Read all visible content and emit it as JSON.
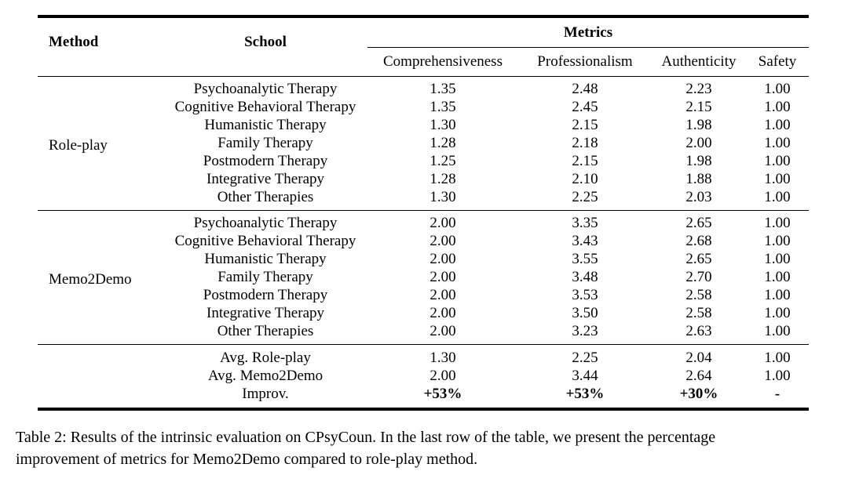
{
  "table": {
    "header": {
      "method": "Method",
      "school": "School",
      "metrics_group": "Metrics",
      "metrics": [
        "Comprehensiveness",
        "Professionalism",
        "Authenticity",
        "Safety"
      ]
    },
    "groups": [
      {
        "method": "Role-play",
        "rows": [
          {
            "school": "Psychoanalytic Therapy",
            "values": [
              "1.35",
              "2.48",
              "2.23",
              "1.00"
            ]
          },
          {
            "school": "Cognitive Behavioral Therapy",
            "values": [
              "1.35",
              "2.45",
              "2.15",
              "1.00"
            ]
          },
          {
            "school": "Humanistic Therapy",
            "values": [
              "1.30",
              "2.15",
              "1.98",
              "1.00"
            ]
          },
          {
            "school": "Family Therapy",
            "values": [
              "1.28",
              "2.18",
              "2.00",
              "1.00"
            ]
          },
          {
            "school": "Postmodern Therapy",
            "values": [
              "1.25",
              "2.15",
              "1.98",
              "1.00"
            ]
          },
          {
            "school": "Integrative Therapy",
            "values": [
              "1.28",
              "2.10",
              "1.88",
              "1.00"
            ]
          },
          {
            "school": "Other Therapies",
            "values": [
              "1.30",
              "2.25",
              "2.03",
              "1.00"
            ]
          }
        ]
      },
      {
        "method": "Memo2Demo",
        "rows": [
          {
            "school": "Psychoanalytic Therapy",
            "values": [
              "2.00",
              "3.35",
              "2.65",
              "1.00"
            ]
          },
          {
            "school": "Cognitive Behavioral Therapy",
            "values": [
              "2.00",
              "3.43",
              "2.68",
              "1.00"
            ]
          },
          {
            "school": "Humanistic Therapy",
            "values": [
              "2.00",
              "3.55",
              "2.65",
              "1.00"
            ]
          },
          {
            "school": "Family Therapy",
            "values": [
              "2.00",
              "3.48",
              "2.70",
              "1.00"
            ]
          },
          {
            "school": "Postmodern Therapy",
            "values": [
              "2.00",
              "3.53",
              "2.58",
              "1.00"
            ]
          },
          {
            "school": "Integrative Therapy",
            "values": [
              "2.00",
              "3.50",
              "2.58",
              "1.00"
            ]
          },
          {
            "school": "Other Therapies",
            "values": [
              "2.00",
              "3.23",
              "2.63",
              "1.00"
            ]
          }
        ]
      }
    ],
    "summary": [
      {
        "school": "Avg. Role-play",
        "values": [
          "1.30",
          "2.25",
          "2.04",
          "1.00"
        ],
        "bold": false
      },
      {
        "school": "Avg. Memo2Demo",
        "values": [
          "2.00",
          "3.44",
          "2.64",
          "1.00"
        ],
        "bold": false
      },
      {
        "school": "Improv.",
        "values": [
          "+53%",
          "+53%",
          "+30%",
          "-"
        ],
        "bold": true
      }
    ]
  },
  "caption": {
    "line1": "Table 2: Results of the intrinsic evaluation on CPsyCoun. In the last row of the table, we present the percentage",
    "line2": "improvement of metrics for Memo2Demo compared to role-play method."
  }
}
